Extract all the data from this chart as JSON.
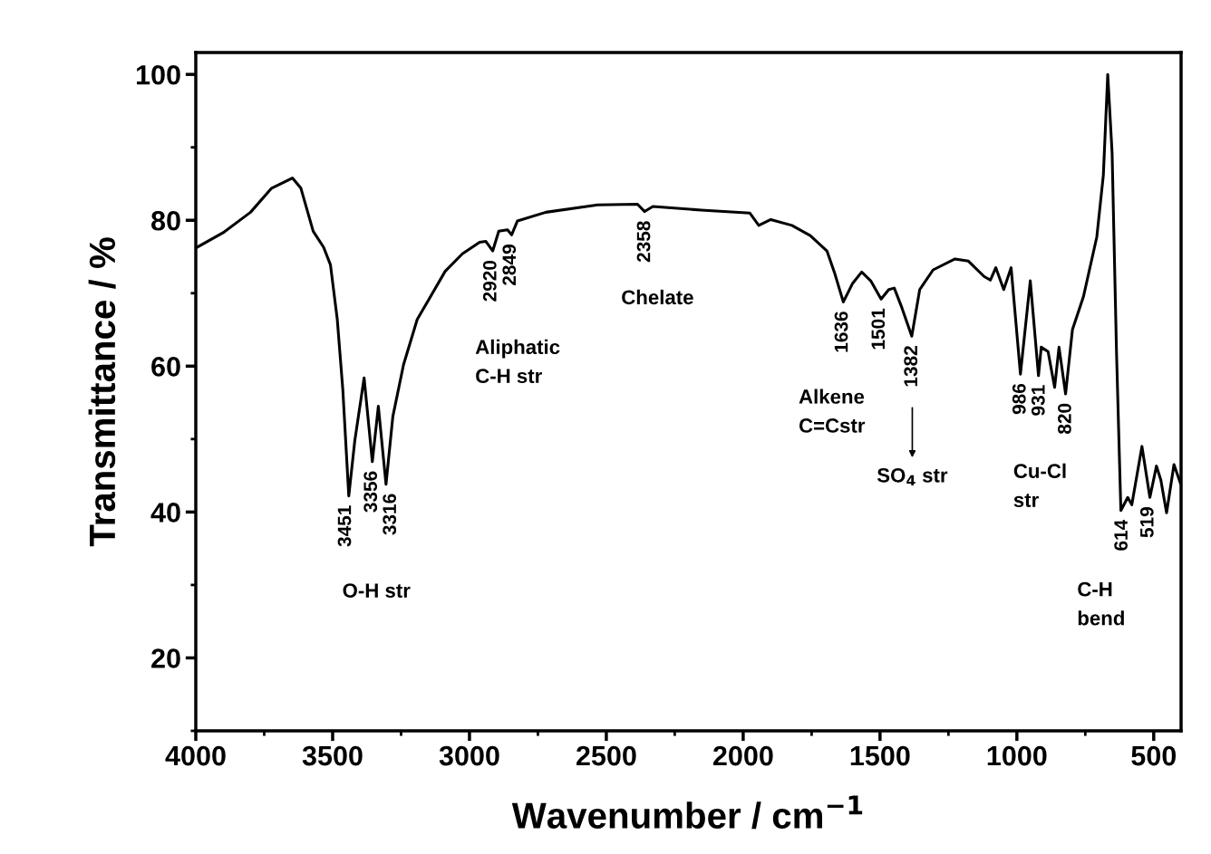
{
  "chart_data": {
    "type": "line",
    "xlabel": "Wavenumber / cm$^{−1}$",
    "ylabel": "Transmittance / %",
    "xlim": [
      4000,
      400
    ],
    "xticks": [
      4000,
      3500,
      3000,
      2500,
      2000,
      1500,
      1000,
      500
    ],
    "ylim": [
      10,
      103
    ],
    "yticks": [
      20,
      40,
      60,
      80,
      100
    ],
    "grid": false,
    "marker": "none",
    "line_style": "solid",
    "series": [
      {
        "color": "#000000",
        "x": [
          4000,
          3900,
          3800,
          3723,
          3647,
          3616,
          3571,
          3533,
          3508,
          3483,
          3463,
          3441,
          3419,
          3385,
          3355,
          3333,
          3305,
          3280,
          3241,
          3191,
          3140,
          3089,
          3026,
          2963,
          2940,
          2915,
          2893,
          2861,
          2846,
          2825,
          2721,
          2532,
          2386,
          2360,
          2330,
          2154,
          1976,
          1943,
          1899,
          1822,
          1755,
          1694,
          1667,
          1634,
          1601,
          1567,
          1534,
          1496,
          1468,
          1448,
          1420,
          1384,
          1355,
          1306,
          1226,
          1177,
          1120,
          1097,
          1077,
          1048,
          1021,
          987,
          951,
          921,
          911,
          886,
          862,
          846,
          822,
          797,
          757,
          708,
          684,
          668,
          652,
          636,
          620,
          595,
          580,
          543,
          514,
          490,
          474,
          453,
          426,
          401
        ],
        "values": [
          76.2,
          78.3,
          81.1,
          84.4,
          85.8,
          84.4,
          78.5,
          76.3,
          73.9,
          66.4,
          56.9,
          42.2,
          49.8,
          58.4,
          46.9,
          54.5,
          43.8,
          53.1,
          60.2,
          66.4,
          69.7,
          73.0,
          75.4,
          77.0,
          77.1,
          75.8,
          78.5,
          78.7,
          78.0,
          79.9,
          81.1,
          82.1,
          82.2,
          81.2,
          81.9,
          81.4,
          81.0,
          79.3,
          80.1,
          79.3,
          77.9,
          75.8,
          72.9,
          68.8,
          71.3,
          72.9,
          71.7,
          69.2,
          70.5,
          70.7,
          68.0,
          64.1,
          70.5,
          73.2,
          74.7,
          74.4,
          72.3,
          71.8,
          73.5,
          70.5,
          73.5,
          58.9,
          71.7,
          58.7,
          62.6,
          62.0,
          57.1,
          62.6,
          56.2,
          65.0,
          69.5,
          77.7,
          86.2,
          100.0,
          89.2,
          62.0,
          40.2,
          42.0,
          41.0,
          49.0,
          42.0,
          46.3,
          44.4,
          39.9,
          46.5,
          43.8
        ]
      }
    ],
    "annotations": [
      {
        "text": "3451",
        "x": 3451,
        "y": 42.2
      },
      {
        "text": "3356",
        "x": 3356,
        "y": 46.9
      },
      {
        "text": "3316",
        "x": 3316,
        "y": 43.8
      },
      {
        "text": "2920",
        "x": 2920,
        "y": 75.8
      },
      {
        "text": "2849",
        "x": 2849,
        "y": 78.0
      },
      {
        "text": "2358",
        "x": 2358,
        "y": 81.2
      },
      {
        "text": "1636",
        "x": 1636,
        "y": 68.8
      },
      {
        "text": "1501",
        "x": 1501,
        "y": 69.2
      },
      {
        "text": "1382",
        "x": 1382,
        "y": 64.1
      },
      {
        "text": "986",
        "x": 986,
        "y": 58.9
      },
      {
        "text": "931",
        "x": 931,
        "y": 58.7
      },
      {
        "text": "820",
        "x": 820,
        "y": 56.2
      },
      {
        "text": "614",
        "x": 614,
        "y": 40.2
      },
      {
        "text": "519",
        "x": 519,
        "y": 42.0
      },
      "O-H str",
      "Aliphatic\nC-H str",
      "Chelate",
      "Alkene\nC=Cstr",
      "SO$_{4}$ str",
      "Cu-Cl\nstr",
      "C-H\nbend"
    ]
  }
}
